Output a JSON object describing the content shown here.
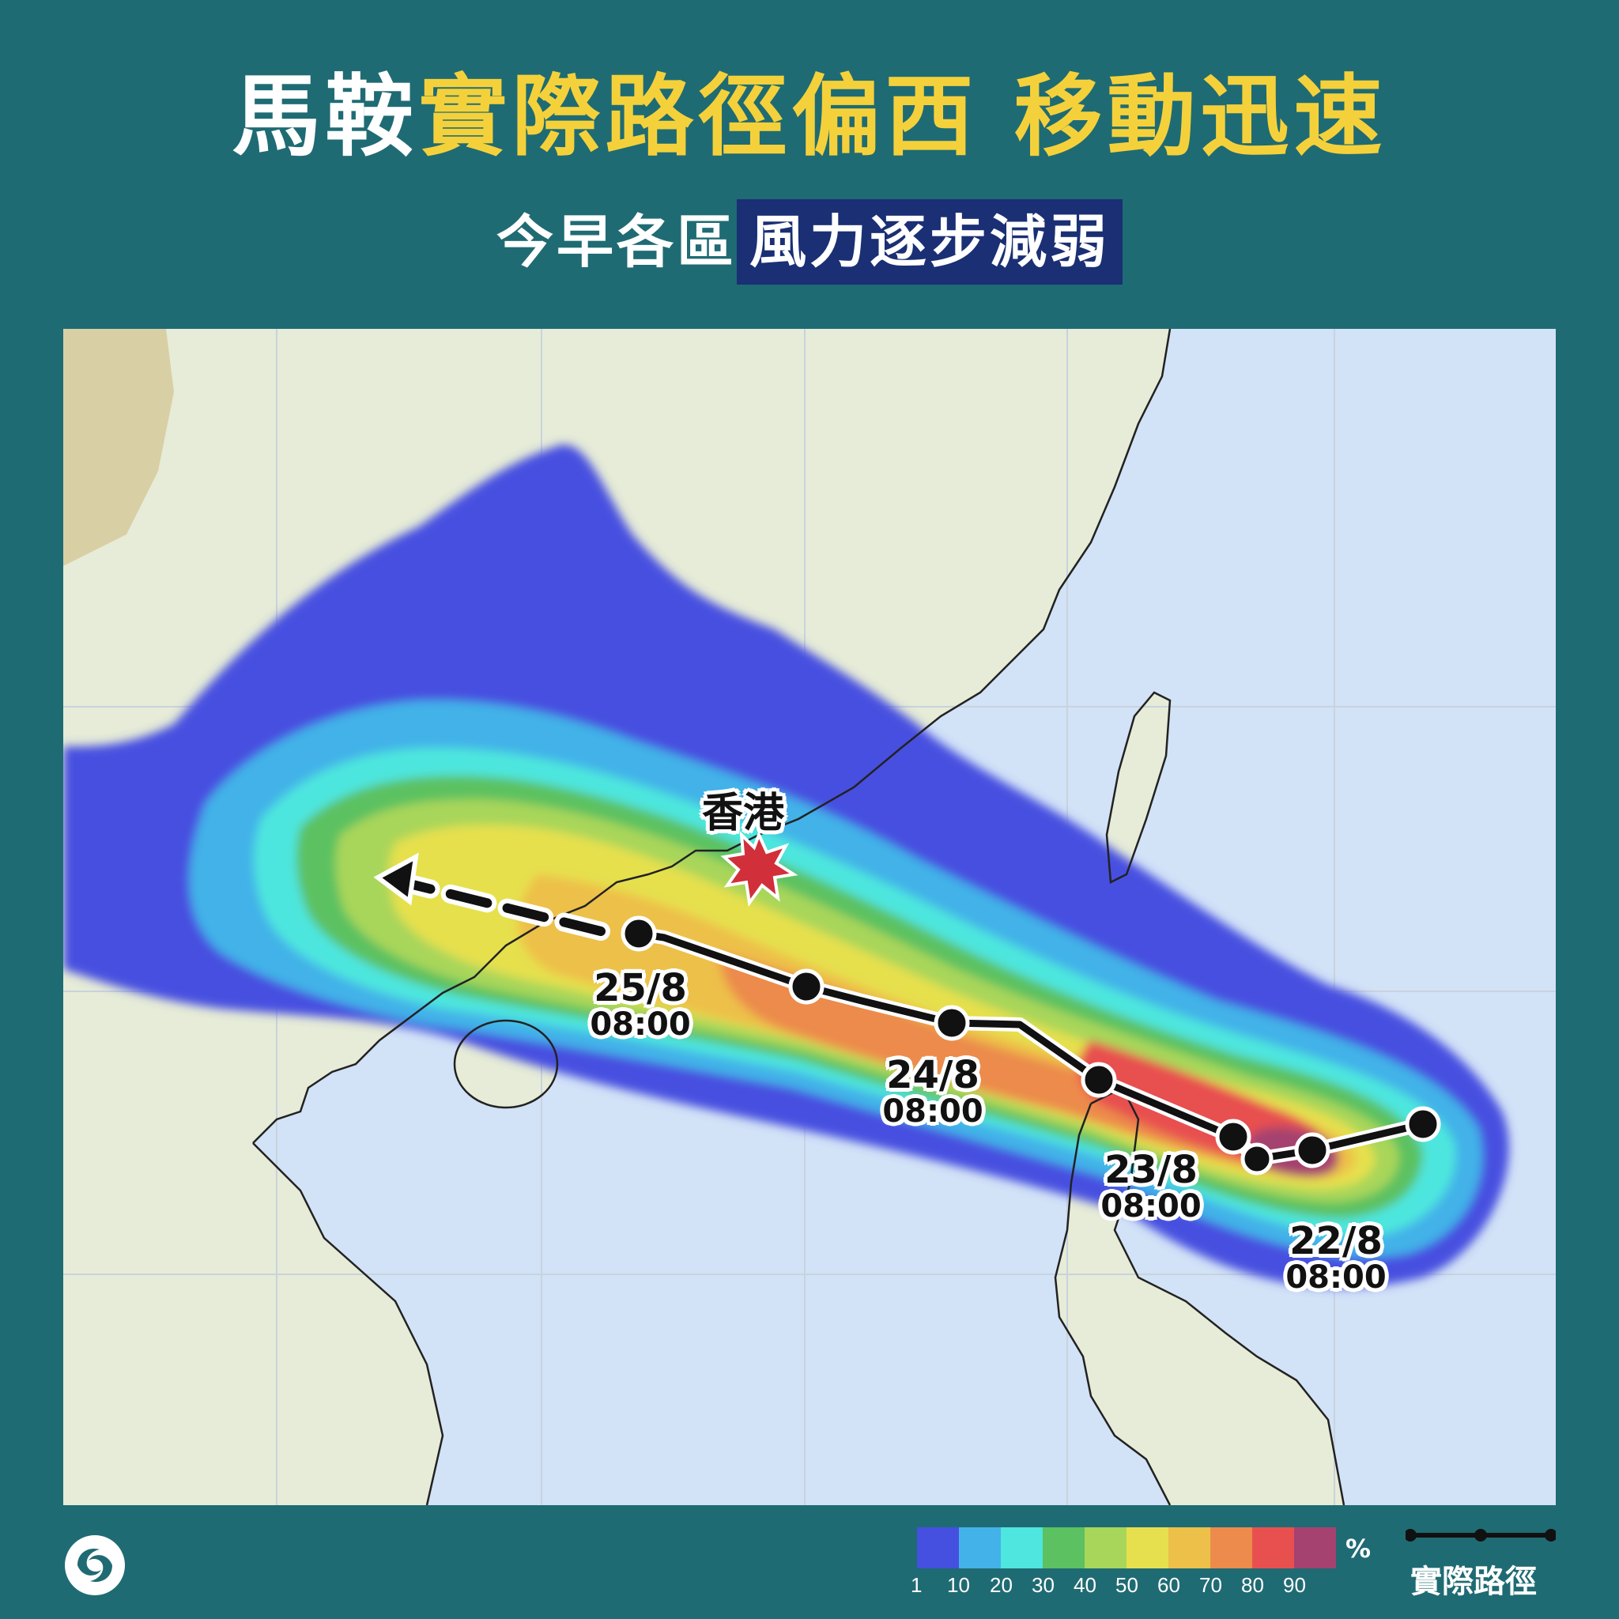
{
  "title": {
    "part1": "馬鞍",
    "part2": "實際路徑偏西 移動迅速"
  },
  "subtitle": {
    "part1": "今早各區",
    "highlight": "風力逐步減弱"
  },
  "map": {
    "city_label": "香港",
    "track_labels": [
      {
        "date": "25/8",
        "time": "08:00"
      },
      {
        "date": "24/8",
        "time": "08:00"
      },
      {
        "date": "23/8",
        "time": "08:00"
      },
      {
        "date": "22/8",
        "time": "08:00"
      }
    ]
  },
  "legend": {
    "unit": "%",
    "ticks": [
      "1",
      "10",
      "20",
      "30",
      "40",
      "50",
      "60",
      "70",
      "80",
      "90"
    ],
    "colors": [
      "#4650e0",
      "#43b2e8",
      "#4ee6de",
      "#5cc160",
      "#a8d65a",
      "#e6e04e",
      "#edc04a",
      "#ec8b4c",
      "#e8504f",
      "#a5426f"
    ],
    "track_label": "實際路徑"
  },
  "colors": {
    "background": "#1f6b73",
    "accent_yellow": "#f4d13b",
    "highlight_bg": "#1a2f74"
  }
}
